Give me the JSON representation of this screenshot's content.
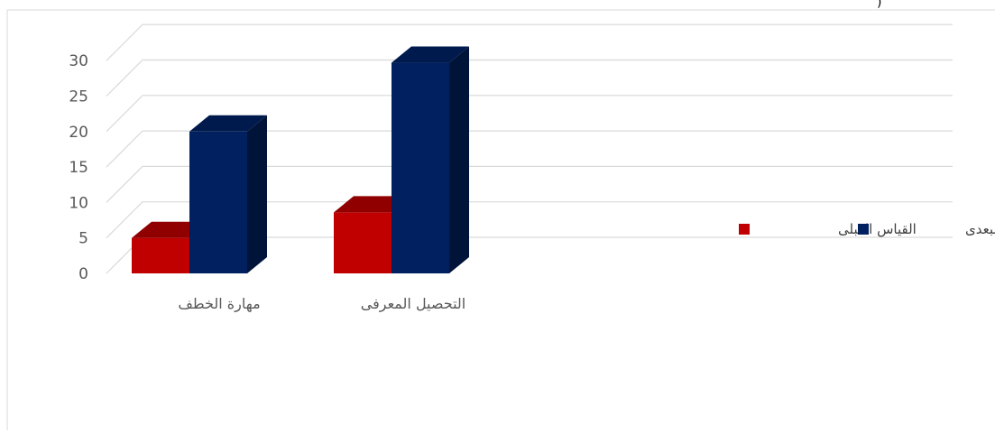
{
  "chart_data": {
    "type": "bar",
    "style": "3d-clustered-column",
    "categories": [
      "مهارة الخطف",
      "التحصيل المعرفى"
    ],
    "series": [
      {
        "name": "القياس القبلى",
        "values": [
          5,
          8.6
        ],
        "color": "#C00000",
        "top_color": "#900000",
        "side_color": "#7a0000"
      },
      {
        "name": "القياس البعدى",
        "values": [
          20,
          29.7
        ],
        "color": "#002060",
        "top_color": "#001a4d",
        "side_color": "#00143a"
      }
    ],
    "yticks": [
      0,
      5,
      10,
      15,
      20,
      25,
      30
    ],
    "ylim": [
      0,
      30
    ],
    "grid": true,
    "legend_position": "right",
    "title": "",
    "xlabel": "",
    "ylabel": ""
  },
  "colors": {
    "gridline": "#d9d9d9",
    "frame": "#d9d9d9",
    "tick_text": "#595959"
  },
  "fragment_text": ")"
}
